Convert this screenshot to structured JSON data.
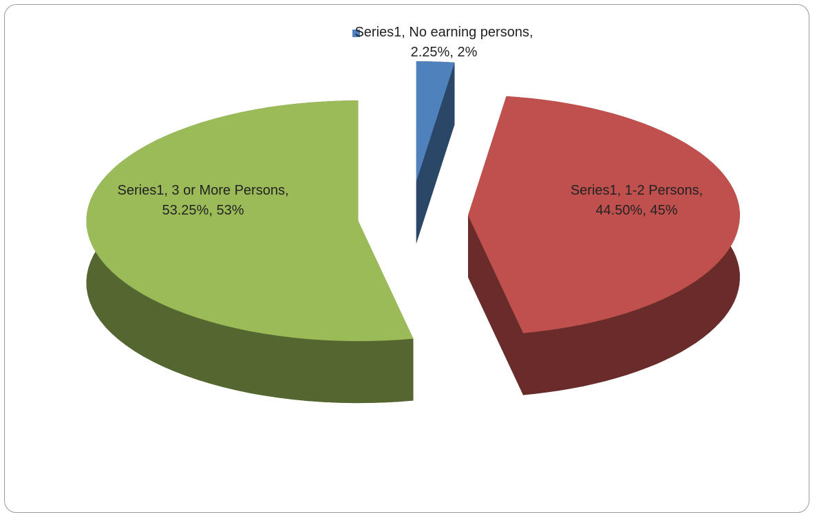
{
  "chart_data": {
    "type": "pie",
    "pie_3d": true,
    "exploded": true,
    "values": [
      2.25,
      44.5,
      53.25
    ],
    "value_labels": [
      "Series1, No earning persons, 2.25%, 2%",
      "Series1, 1-2 Persons, 44.50%, 45%",
      "Series1, 3 or More Persons, 53.25%, 53%"
    ],
    "colors": [
      "#4f81bd",
      "#c0504d",
      "#9bbb59"
    ]
  }
}
